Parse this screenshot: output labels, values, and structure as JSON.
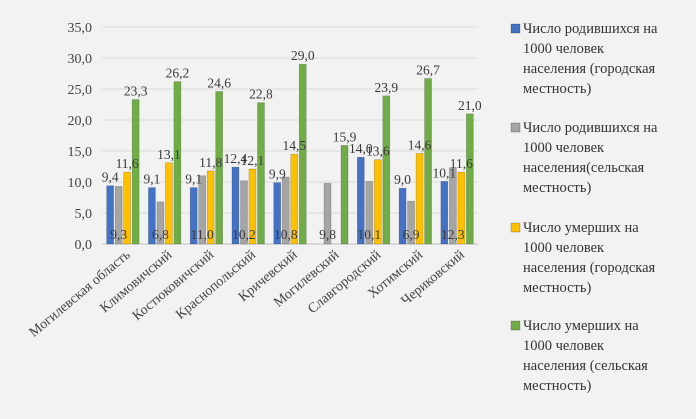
{
  "chart_data": {
    "type": "bar",
    "ylim": [
      0,
      35
    ],
    "yticks": [
      "0,0",
      "5,0",
      "10,0",
      "15,0",
      "20,0",
      "25,0",
      "30,0",
      "35,0"
    ],
    "grid": true,
    "legend_position": "right",
    "categories": [
      "Могилевская область",
      "Климовичский",
      "Костюковичский",
      "Краснопольский",
      "Кричевский",
      "Могилевский",
      "Славгородский",
      "Хотимский",
      "Чериковский"
    ],
    "series": [
      {
        "name": "Число родившихся на 1000 человек населения (городская местность)",
        "color": "#4472c4",
        "values": [
          9.4,
          9.1,
          9.1,
          12.4,
          9.9,
          null,
          14.0,
          9.0,
          10.1
        ],
        "labels": [
          "9,4",
          "9,1",
          "9,1",
          "12,4",
          "9,9",
          "",
          "14,0",
          "9,0",
          "10,1"
        ]
      },
      {
        "name": "Число родившихся на 1000 человек населения(сельская местность)",
        "color": "#a5a5a5",
        "values": [
          9.3,
          6.8,
          11.0,
          10.2,
          10.8,
          9.8,
          10.1,
          6.9,
          12.3
        ],
        "labels": [
          "9,3",
          "6,8",
          "11,0",
          "10,2",
          "10,8",
          "9,8",
          "10,1",
          "6,9",
          "12,3"
        ]
      },
      {
        "name": "Число умерших на 1000 человек населения (городская местность)",
        "color": "#ffc000",
        "values": [
          11.6,
          13.1,
          11.8,
          12.1,
          14.5,
          null,
          13.6,
          14.6,
          11.6
        ],
        "labels": [
          "11,6",
          "13,1",
          "11,8",
          "12,1",
          "14,5",
          "",
          "13,6",
          "14,6",
          "11,6"
        ]
      },
      {
        "name": "Число умерших на 1000 человек населения (сельская местность)",
        "color": "#70ad47",
        "values": [
          23.3,
          26.2,
          24.6,
          22.8,
          29.0,
          15.9,
          23.9,
          26.7,
          21.0
        ],
        "labels": [
          "23,3",
          "26,2",
          "24,6",
          "22,8",
          "29,0",
          "15,9",
          "23,9",
          "26,7",
          "21,0"
        ]
      }
    ],
    "legend_lines": [
      [
        "Число родившихся на",
        "1000 человек",
        "населения (городская",
        "местность)"
      ],
      [
        "Число родившихся на",
        "1000 человек",
        "населения(сельская",
        "местность)"
      ],
      [
        "Число умерших на",
        "1000 человек",
        "населения (городская",
        "местность)"
      ],
      [
        "Число умерших на",
        "1000 человек",
        "населения (сельская",
        "местность)"
      ]
    ]
  }
}
